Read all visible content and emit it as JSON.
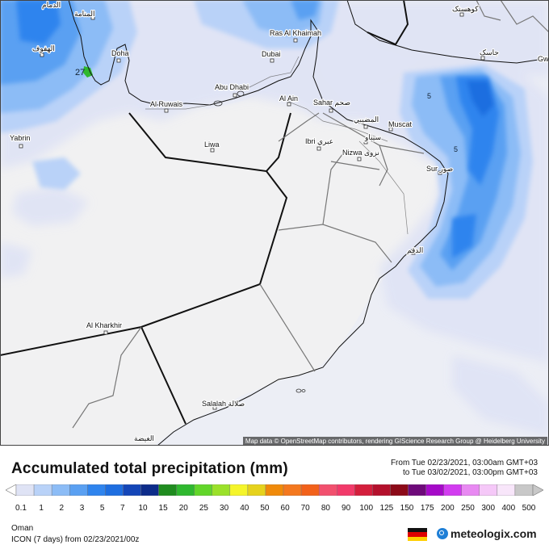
{
  "title": "Accumulated total precipitation (mm)",
  "range": {
    "from": "From Tue 02/23/2021, 03:00am GMT+03",
    "to": "to Tue 03/02/2021, 03:00pm GMT+03"
  },
  "region": "Oman",
  "model": "ICON (7 days) from 02/23/2021/00z",
  "brand": "meteologix.com",
  "attribution": "Map data © OpenStreetMap contributors, rendering GIScience Research Group @ Heidelberg University",
  "legend": {
    "ticks": [
      "0.1",
      "1",
      "2",
      "3",
      "5",
      "7",
      "10",
      "15",
      "20",
      "25",
      "30",
      "40",
      "50",
      "60",
      "70",
      "80",
      "90",
      "100",
      "125",
      "150",
      "175",
      "200",
      "250",
      "300",
      "400",
      "500"
    ],
    "colors": [
      "#dfe3f5",
      "#b9d2f8",
      "#8cbcf6",
      "#5aa0f2",
      "#2f84ee",
      "#1e6ee0",
      "#1446b8",
      "#0d2c8a",
      "#1f8c1f",
      "#2fb82f",
      "#62d62a",
      "#9be12a",
      "#f5f52a",
      "#e6d21c",
      "#f08a0a",
      "#f4781e",
      "#f2611a",
      "#f2506e",
      "#f23a6a",
      "#d41e3c",
      "#b4102c",
      "#8c0a18",
      "#6e0a7a",
      "#a50ac8",
      "#d23cf0",
      "#e889f2",
      "#f5c8f8",
      "#f8e6fa",
      "#c8c8c8"
    ]
  },
  "map": {
    "labels": {
      "dammam": "الدمام",
      "manama": "المنامة",
      "hofuf": "الهفوف",
      "doha": "Doha",
      "ras_al_khaimah": "Ras Al Khaimah",
      "dubai": "Dubai",
      "abu_dhabi": "Abu Dhabi",
      "al_ruwais": "Al Ruwais",
      "al_ain": "Al Ain",
      "sahar": "Sahar صحم",
      "al_mudaibi": "المضيبي",
      "muscat": "Muscat",
      "sinaw": "سيناو",
      "ibri": "Ibri عبري",
      "nizwa": "Nizwa نزوى",
      "sur": "Sur صور",
      "yabrin": "Yabrin",
      "liwa": "Liwa",
      "duqm": "الدقم",
      "al_kharkhir": "Al Kharkhir",
      "salalah": "Salalah صلالة",
      "al_ghaydah": "الغيضة",
      "jask": "جاسک",
      "gw": "Gw"
    },
    "values": {
      "bahrain_value": "27",
      "oman_sea_value_1": "5",
      "oman_sea_value_2": "5"
    }
  }
}
